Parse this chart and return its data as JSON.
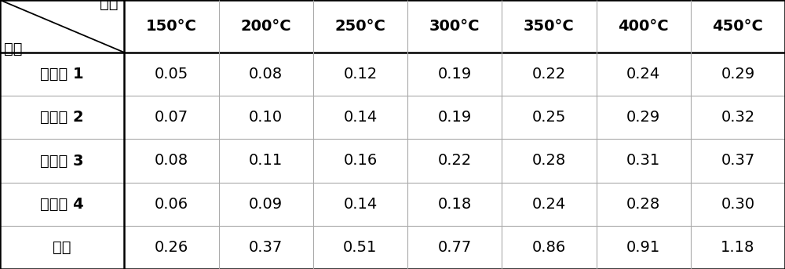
{
  "col_headers": [
    "150°C",
    "200°C",
    "250°C",
    "300°C",
    "350°C",
    "400°C",
    "450°C"
  ],
  "row_headers": [
    "实施例 1",
    "实施例 2",
    "实施例 3",
    "实施例 4",
    "对比"
  ],
  "header_top": "温度",
  "header_left": "样品",
  "data": [
    [
      "0.05",
      "0.08",
      "0.12",
      "0.19",
      "0.22",
      "0.24",
      "0.29"
    ],
    [
      "0.07",
      "0.10",
      "0.14",
      "0.19",
      "0.25",
      "0.29",
      "0.32"
    ],
    [
      "0.08",
      "0.11",
      "0.16",
      "0.22",
      "0.28",
      "0.31",
      "0.37"
    ],
    [
      "0.06",
      "0.09",
      "0.14",
      "0.18",
      "0.24",
      "0.28",
      "0.30"
    ],
    [
      "0.26",
      "0.37",
      "0.51",
      "0.77",
      "0.86",
      "0.91",
      "1.18"
    ]
  ],
  "bg_color": "#ffffff",
  "text_color": "#000000",
  "line_color": "#aaaaaa",
  "bold_line_color": "#000000",
  "font_size": 14,
  "header_font_size": 14
}
